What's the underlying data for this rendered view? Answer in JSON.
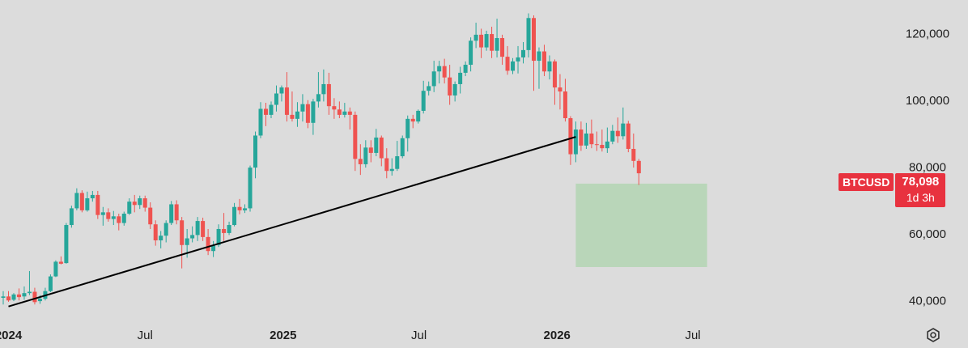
{
  "chart_data": {
    "type": "candlestick",
    "symbol": "BTCUSD",
    "last_price": "78,098",
    "bar_countdown": "1d 3h",
    "ylim": [
      34000,
      130000
    ],
    "y_ticks": [
      "120,000",
      "100,000",
      "80,000",
      "60,000",
      "40,000"
    ],
    "y_tick_values": [
      120000,
      100000,
      80000,
      60000,
      40000
    ],
    "x_ticks": [
      {
        "label": "2024",
        "major": true,
        "date": "2024-01"
      },
      {
        "label": "Jul",
        "major": false,
        "date": "2024-07"
      },
      {
        "label": "2025",
        "major": true,
        "date": "2025-01"
      },
      {
        "label": "Jul",
        "major": false,
        "date": "2025-07"
      },
      {
        "label": "2026",
        "major": true,
        "date": "2026-01"
      },
      {
        "label": "Jul",
        "major": false,
        "date": "2026-07"
      }
    ],
    "candles": [
      [
        40800,
        42800,
        38800,
        41200
      ],
      [
        41200,
        42800,
        39600,
        40000
      ],
      [
        40200,
        42200,
        39800,
        41800
      ],
      [
        41800,
        43600,
        40000,
        41000
      ],
      [
        41200,
        44200,
        40200,
        42200
      ],
      [
        42200,
        48800,
        41600,
        42600
      ],
      [
        42600,
        43800,
        38800,
        39500
      ],
      [
        39800,
        41600,
        39000,
        40500
      ],
      [
        40500,
        43800,
        40000,
        42800
      ],
      [
        42800,
        47800,
        42500,
        47200
      ],
      [
        47200,
        52000,
        47000,
        51600
      ],
      [
        51600,
        53200,
        50800,
        51000
      ],
      [
        51200,
        63200,
        51000,
        62600
      ],
      [
        62600,
        68400,
        61800,
        67600
      ],
      [
        67600,
        73600,
        67000,
        72200
      ],
      [
        72200,
        73000,
        66400,
        67000
      ],
      [
        67000,
        72600,
        66600,
        70600
      ],
      [
        70600,
        72800,
        69600,
        71600
      ],
      [
        71600,
        72800,
        64400,
        65600
      ],
      [
        65600,
        68000,
        62400,
        66400
      ],
      [
        66400,
        67600,
        63600,
        64400
      ],
      [
        64400,
        66800,
        62600,
        65200
      ],
      [
        65200,
        66000,
        61000,
        63200
      ],
      [
        63200,
        66600,
        62400,
        66000
      ],
      [
        66000,
        70600,
        65600,
        69600
      ],
      [
        69600,
        71600,
        66400,
        68600
      ],
      [
        68600,
        71400,
        67400,
        70600
      ],
      [
        70600,
        71400,
        66600,
        67800
      ],
      [
        67800,
        69400,
        61400,
        62800
      ],
      [
        62800,
        64000,
        56400,
        58000
      ],
      [
        58000,
        60800,
        55600,
        59400
      ],
      [
        59400,
        64000,
        57400,
        63200
      ],
      [
        63200,
        69800,
        62600,
        68800
      ],
      [
        68800,
        70000,
        62800,
        64000
      ],
      [
        64000,
        65000,
        49600,
        56600
      ],
      [
        56600,
        61400,
        52800,
        58600
      ],
      [
        58600,
        62200,
        57400,
        59600
      ],
      [
        59600,
        65000,
        57800,
        63800
      ],
      [
        63800,
        64800,
        57800,
        59000
      ],
      [
        59000,
        61400,
        53600,
        54800
      ],
      [
        54800,
        57800,
        53000,
        56600
      ],
      [
        56600,
        62800,
        56000,
        61400
      ],
      [
        61400,
        66200,
        57800,
        60200
      ],
      [
        60200,
        63600,
        59600,
        62600
      ],
      [
        62600,
        69200,
        62200,
        68000
      ],
      [
        68000,
        70400,
        65800,
        67000
      ],
      [
        67000,
        68800,
        66200,
        67600
      ],
      [
        67600,
        80400,
        66600,
        79800
      ],
      [
        79800,
        90600,
        76600,
        89400
      ],
      [
        89400,
        99400,
        88600,
        97400
      ],
      [
        97400,
        99200,
        92200,
        95600
      ],
      [
        95600,
        99600,
        94600,
        98600
      ],
      [
        98600,
        104400,
        96600,
        102000
      ],
      [
        102000,
        104400,
        99600,
        103800
      ],
      [
        103800,
        108400,
        93600,
        95600
      ],
      [
        95600,
        102600,
        93600,
        94400
      ],
      [
        94400,
        99400,
        92000,
        96600
      ],
      [
        96600,
        101800,
        93600,
        98800
      ],
      [
        98800,
        100000,
        91600,
        93200
      ],
      [
        93200,
        100400,
        89600,
        99600
      ],
      [
        99600,
        108400,
        97800,
        101800
      ],
      [
        101800,
        109200,
        99600,
        104800
      ],
      [
        104800,
        108200,
        95600,
        98200
      ],
      [
        98200,
        100600,
        94400,
        97200
      ],
      [
        97200,
        99600,
        94600,
        95600
      ],
      [
        95600,
        99200,
        94800,
        96600
      ],
      [
        96600,
        97800,
        91200,
        95600
      ],
      [
        95600,
        96600,
        78800,
        82400
      ],
      [
        82400,
        86800,
        77600,
        80800
      ],
      [
        80800,
        88000,
        79800,
        85800
      ],
      [
        85800,
        88000,
        81400,
        84200
      ],
      [
        84200,
        91400,
        83200,
        88800
      ],
      [
        88800,
        89400,
        80200,
        82600
      ],
      [
        82600,
        85600,
        76600,
        78800
      ],
      [
        78800,
        82600,
        77400,
        79400
      ],
      [
        79400,
        87800,
        78800,
        83200
      ],
      [
        83200,
        89400,
        82600,
        88600
      ],
      [
        88600,
        95400,
        84600,
        94400
      ],
      [
        94400,
        95600,
        91600,
        93600
      ],
      [
        93600,
        97200,
        93000,
        96800
      ],
      [
        96800,
        105800,
        96000,
        102800
      ],
      [
        102800,
        105600,
        101400,
        104200
      ],
      [
        104200,
        111800,
        102400,
        108600
      ],
      [
        108600,
        111800,
        105000,
        110200
      ],
      [
        110200,
        112400,
        105000,
        106800
      ],
      [
        106800,
        110600,
        98600,
        101400
      ],
      [
        101400,
        105600,
        99600,
        104800
      ],
      [
        104800,
        110000,
        102000,
        108200
      ],
      [
        108200,
        111600,
        107200,
        110600
      ],
      [
        110600,
        118800,
        108600,
        117800
      ],
      [
        117800,
        123200,
        115600,
        119600
      ],
      [
        119600,
        121400,
        112600,
        115800
      ],
      [
        115800,
        120800,
        114800,
        119800
      ],
      [
        119800,
        122000,
        112600,
        114800
      ],
      [
        114800,
        124400,
        112800,
        118600
      ],
      [
        118600,
        119600,
        110600,
        113000
      ],
      [
        113000,
        116200,
        107600,
        108800
      ],
      [
        108800,
        112600,
        107800,
        111600
      ],
      [
        111600,
        116200,
        108000,
        112800
      ],
      [
        112800,
        117400,
        111000,
        115000
      ],
      [
        115000,
        126000,
        112800,
        124600
      ],
      [
        124600,
        125400,
        102800,
        111800
      ],
      [
        111800,
        115800,
        103400,
        114600
      ],
      [
        114600,
        116600,
        107200,
        108600
      ],
      [
        108600,
        113400,
        106200,
        111600
      ],
      [
        111600,
        112200,
        98600,
        103800
      ],
      [
        103800,
        107800,
        97200,
        102600
      ],
      [
        102600,
        106400,
        93600,
        94600
      ],
      [
        94600,
        95200,
        80600,
        83800
      ],
      [
        83800,
        93600,
        81400,
        91200
      ],
      [
        91200,
        93600,
        84800,
        86400
      ],
      [
        86400,
        93200,
        85400,
        90000
      ],
      [
        90000,
        94200,
        85600,
        86800
      ],
      [
        86800,
        90600,
        84800,
        86600
      ],
      [
        86600,
        91200,
        84600,
        85600
      ],
      [
        85600,
        91800,
        84200,
        87600
      ],
      [
        87600,
        92600,
        86800,
        90800
      ],
      [
        90800,
        94800,
        87200,
        89200
      ],
      [
        89200,
        97800,
        88200,
        93000
      ],
      [
        93000,
        93800,
        84400,
        85400
      ],
      [
        85400,
        90000,
        79800,
        81800
      ],
      [
        81800,
        82400,
        74600,
        78098
      ]
    ],
    "trendline": {
      "start": [
        "2024-01",
        38200
      ],
      "end": [
        "2026-01-26",
        89000
      ]
    },
    "target_zone": {
      "x_start": "2026-01-26",
      "x_end": "2026-07-20",
      "y_low": 50000,
      "y_high": 75000
    },
    "colors": {
      "up": "#26a69a",
      "down": "#ef5350",
      "zone": "#b9d6b9",
      "trendline": "#000000",
      "badge": "#e8323f"
    }
  }
}
